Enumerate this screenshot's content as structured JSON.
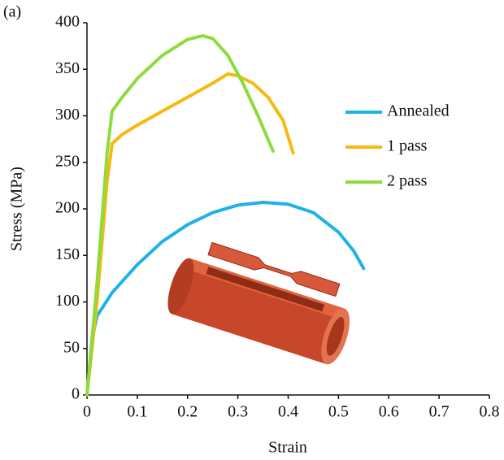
{
  "chart_data": {
    "type": "line",
    "annotations": [
      "(a)"
    ],
    "xlabel": "Strain",
    "ylabel": "Stress (MPa)",
    "xlim": [
      0,
      0.8
    ],
    "xticks": [
      0,
      0.1,
      0.2,
      0.3,
      0.4,
      0.5,
      0.6,
      0.7,
      0.8
    ],
    "ylim": [
      0,
      400
    ],
    "yticks": [
      0,
      50,
      100,
      150,
      200,
      250,
      300,
      350,
      400
    ],
    "legend": "right",
    "series": [
      {
        "name": "Annealed",
        "color": "#1fb1ea",
        "x": [
          0,
          0.01,
          0.02,
          0.05,
          0.1,
          0.15,
          0.2,
          0.25,
          0.3,
          0.35,
          0.4,
          0.45,
          0.5,
          0.53,
          0.55
        ],
        "values": [
          0,
          60,
          85,
          110,
          140,
          165,
          183,
          196,
          204,
          207,
          205,
          196,
          175,
          155,
          136
        ]
      },
      {
        "name": "1 pass",
        "color": "#f7b90f",
        "x": [
          0,
          0.02,
          0.04,
          0.05,
          0.07,
          0.1,
          0.15,
          0.2,
          0.25,
          0.28,
          0.3,
          0.33,
          0.36,
          0.39,
          0.41
        ],
        "values": [
          0,
          100,
          230,
          270,
          280,
          290,
          305,
          320,
          335,
          345,
          343,
          335,
          320,
          295,
          260
        ]
      },
      {
        "name": "2 pass",
        "color": "#8edb3e",
        "x": [
          0,
          0.02,
          0.04,
          0.05,
          0.07,
          0.1,
          0.15,
          0.2,
          0.23,
          0.25,
          0.28,
          0.31,
          0.34,
          0.37
        ],
        "values": [
          0,
          120,
          260,
          305,
          320,
          340,
          365,
          382,
          386,
          383,
          365,
          335,
          300,
          262
        ]
      }
    ]
  }
}
